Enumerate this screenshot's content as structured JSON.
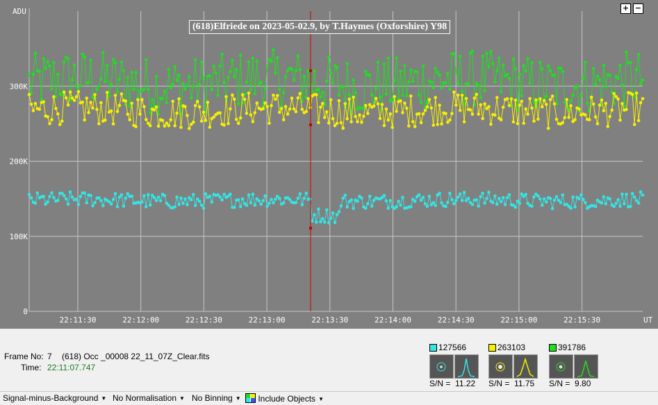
{
  "chart_data": {
    "type": "line",
    "title": "(618)Elfriede on 2023-05-02.9, by T.Haymes (Oxforshire) Y98",
    "ylabel": "ADU",
    "xlabel": "UT",
    "yticks": [
      "0",
      "100K",
      "200K",
      "300K"
    ],
    "ylim": [
      0,
      400000
    ],
    "xticks": [
      "22:11:30",
      "22:12:00",
      "22:12:30",
      "22:13:00",
      "22:13:30",
      "22:14:00",
      "22:14:30",
      "22:15:00",
      "22:15:30"
    ],
    "grid": true,
    "cursor_time": "22:13:18",
    "series": [
      {
        "id": "127566",
        "color": "#33e5e5",
        "base": 148000,
        "amp": 10000
      },
      {
        "id": "263103",
        "color": "#f5f000",
        "base": 268000,
        "amp": 22000
      },
      {
        "id": "391786",
        "color": "#22dd22",
        "base": 305000,
        "amp": 38000
      }
    ]
  },
  "zoom": {
    "plus": "+",
    "minus": "−"
  },
  "frame": {
    "frame_label": "Frame No:",
    "frame_no": "7",
    "file_name": "(618) Occ _00008 22_11_07Z_Clear.fits",
    "time_label": "Time:",
    "time": "22:11:07.747"
  },
  "stars": [
    {
      "id": "127566",
      "color": "#33e5e5",
      "sn_label": "S/N =",
      "sn": "11.22"
    },
    {
      "id": "263103",
      "color": "#f5f000",
      "sn_label": "S/N =",
      "sn": "11.75"
    },
    {
      "id": "391786",
      "color": "#22dd22",
      "sn_label": "S/N =",
      "sn": "9.80"
    }
  ],
  "toolbar": {
    "signal": "Signal-minus-Background",
    "normalisation": "No Normalisation",
    "binning": "No Binning",
    "include": "Include Objects"
  }
}
